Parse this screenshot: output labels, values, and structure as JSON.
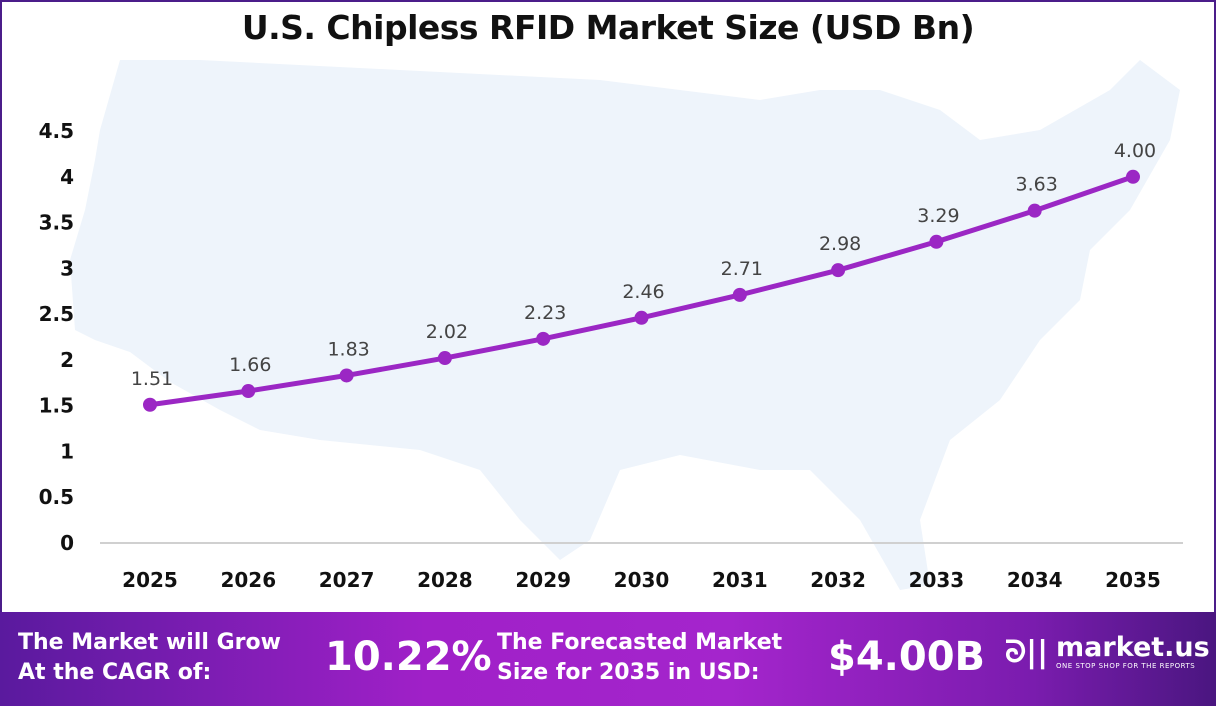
{
  "chart_data": {
    "type": "line",
    "title": "U.S. Chipless RFID Market Size (USD Bn)",
    "categories": [
      "2025",
      "2026",
      "2027",
      "2028",
      "2029",
      "2030",
      "2031",
      "2032",
      "2033",
      "2034",
      "2035"
    ],
    "values": [
      1.51,
      1.66,
      1.83,
      2.02,
      2.23,
      2.46,
      2.71,
      2.98,
      3.29,
      3.63,
      4.0
    ],
    "data_labels": [
      "1.51",
      "1.66",
      "1.83",
      "2.02",
      "2.23",
      "2.46",
      "2.71",
      "2.98",
      "3.29",
      "3.63",
      "4.00"
    ],
    "yticks": [
      "0",
      "0.5",
      "1",
      "1.5",
      "2",
      "2.5",
      "3",
      "3.5",
      "4",
      "4.5"
    ],
    "ylim": [
      0,
      4.5
    ],
    "grid": false,
    "line_color": "#9b27c4",
    "background": "US map silhouette"
  },
  "footer": {
    "cagr_label_1": "The Market will Grow",
    "cagr_label_2": "At the CAGR of:",
    "cagr_value": "10.22%",
    "forecast_label_1": "The Forecasted Market",
    "forecast_label_2": "Size for 2035 in USD:",
    "forecast_value": "$4.00B",
    "logo_name": "market.us",
    "logo_tagline": "ONE STOP SHOP FOR THE REPORTS"
  }
}
